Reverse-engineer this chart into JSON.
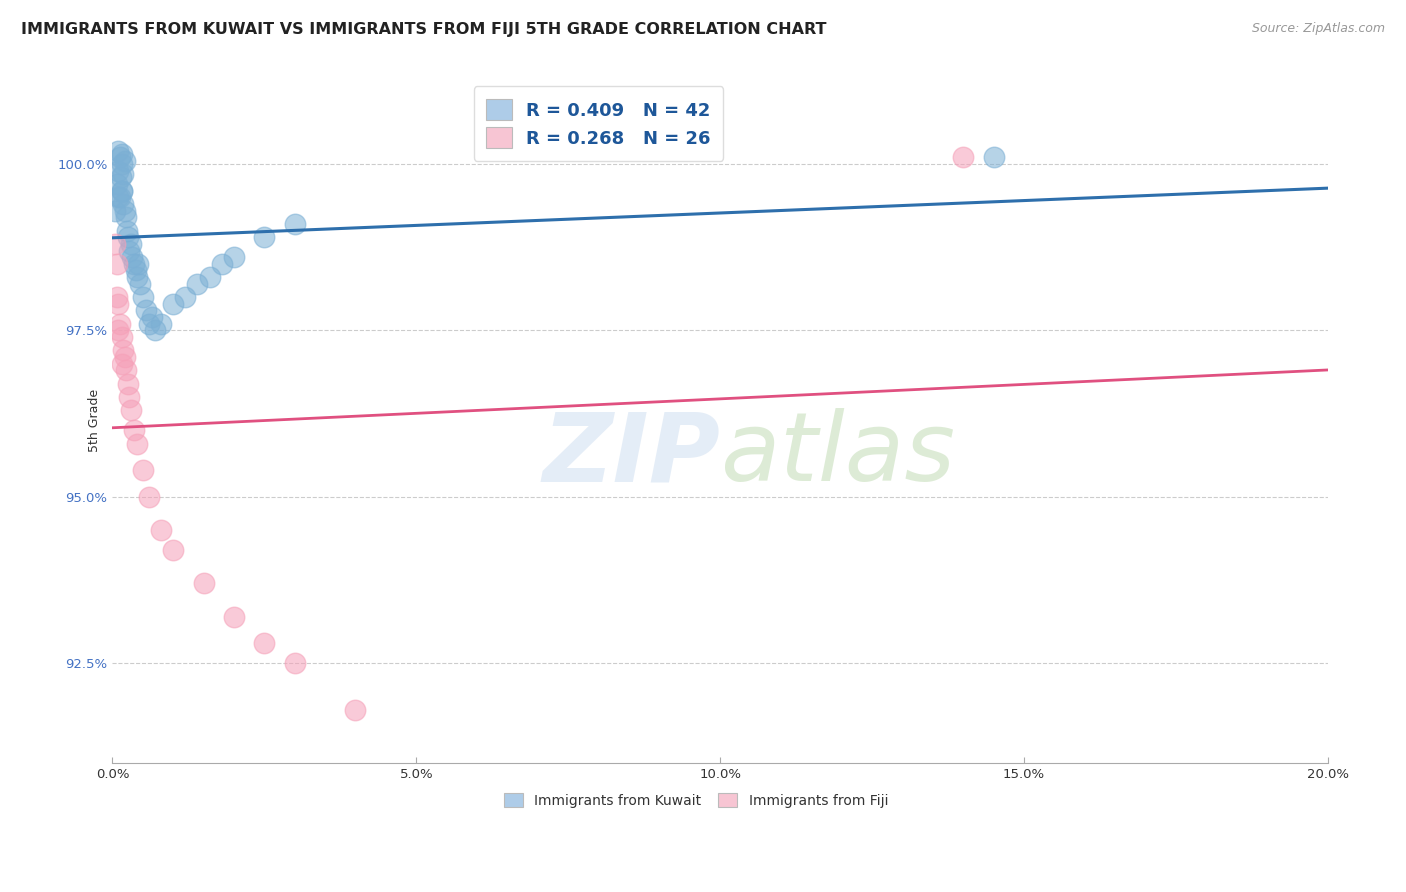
{
  "title": "IMMIGRANTS FROM KUWAIT VS IMMIGRANTS FROM FIJI 5TH GRADE CORRELATION CHART",
  "source": "Source: ZipAtlas.com",
  "xlim": [
    0.0,
    20.0
  ],
  "ylim": [
    91.0,
    101.3
  ],
  "ylabel": "5th Grade",
  "kuwait_x": [
    0.05,
    0.08,
    0.1,
    0.1,
    0.12,
    0.12,
    0.14,
    0.15,
    0.15,
    0.16,
    0.18,
    0.18,
    0.2,
    0.2,
    0.22,
    0.24,
    0.25,
    0.28,
    0.3,
    0.32,
    0.35,
    0.38,
    0.4,
    0.42,
    0.45,
    0.5,
    0.55,
    0.6,
    0.65,
    0.7,
    0.8,
    1.0,
    1.2,
    1.4,
    1.6,
    1.8,
    2.0,
    2.5,
    3.0,
    0.1,
    0.15,
    14.5
  ],
  "kuwait_y": [
    99.3,
    99.7,
    99.9,
    100.2,
    100.1,
    99.5,
    99.8,
    100.0,
    100.15,
    99.6,
    99.4,
    99.85,
    100.05,
    99.3,
    99.2,
    99.0,
    98.9,
    98.7,
    98.8,
    98.6,
    98.5,
    98.4,
    98.3,
    98.5,
    98.2,
    98.0,
    97.8,
    97.6,
    97.7,
    97.5,
    97.6,
    97.9,
    98.0,
    98.2,
    98.3,
    98.5,
    98.6,
    98.9,
    99.1,
    99.5,
    99.6,
    100.1
  ],
  "fiji_x": [
    0.05,
    0.08,
    0.1,
    0.12,
    0.15,
    0.18,
    0.2,
    0.22,
    0.25,
    0.28,
    0.3,
    0.35,
    0.4,
    0.5,
    0.6,
    0.8,
    1.0,
    1.5,
    2.0,
    2.5,
    3.0,
    4.0,
    0.08,
    0.1,
    0.15,
    14.0
  ],
  "fiji_y": [
    98.8,
    98.5,
    97.9,
    97.6,
    97.4,
    97.2,
    97.1,
    96.9,
    96.7,
    96.5,
    96.3,
    96.0,
    95.8,
    95.4,
    95.0,
    94.5,
    94.2,
    93.7,
    93.2,
    92.8,
    92.5,
    91.8,
    98.0,
    97.5,
    97.0,
    100.1
  ],
  "kuwait_color": "#7bafd4",
  "fiji_color": "#f5a0b8",
  "kuwait_line_color": "#2e6fac",
  "fiji_line_color": "#e05080",
  "kuwait_R": 0.409,
  "kuwait_N": 42,
  "fiji_R": 0.268,
  "fiji_N": 26,
  "legend_box_kuwait": "#aecce8",
  "legend_box_fiji": "#f7c5d3",
  "legend_text_color": "#1e5799",
  "ytick_color": "#4472c4",
  "title_fontsize": 11.5,
  "source_fontsize": 9,
  "ylabel_fontsize": 9,
  "tick_fontsize": 9.5,
  "legend_fontsize": 13
}
